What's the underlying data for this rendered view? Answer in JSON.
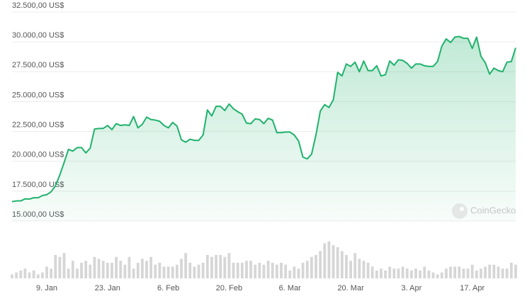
{
  "chart_data": {
    "type": "line",
    "watermark": "CoinGecko",
    "categories": [
      null,
      null,
      null,
      null,
      null,
      null,
      null,
      null,
      "9. Jan",
      null,
      null,
      null,
      null,
      null,
      null,
      null,
      null,
      null,
      null,
      null,
      null,
      null,
      "23. Jan",
      null,
      null,
      null,
      null,
      null,
      null,
      null,
      null,
      null,
      null,
      null,
      null,
      null,
      "6. Feb",
      null,
      null,
      null,
      null,
      null,
      null,
      null,
      null,
      null,
      null,
      null,
      null,
      null,
      "20. Feb",
      null,
      null,
      null,
      null,
      null,
      null,
      null,
      null,
      null,
      null,
      null,
      null,
      null,
      "6. Mar",
      null,
      null,
      null,
      null,
      null,
      null,
      null,
      null,
      null,
      null,
      null,
      null,
      null,
      "20. Mar",
      null,
      null,
      null,
      null,
      null,
      null,
      null,
      null,
      null,
      null,
      null,
      null,
      null,
      "3. Apr",
      null,
      null,
      null,
      null,
      null,
      null,
      null,
      null,
      null,
      null,
      null,
      null,
      null,
      "17. Apr",
      null,
      null,
      null,
      null,
      null,
      null,
      null,
      null,
      null,
      null
    ],
    "series": [
      {
        "type": "line",
        "color": "#20b26c",
        "values": [
          16620,
          16680,
          16680,
          16850,
          16830,
          16950,
          16940,
          17130,
          17200,
          17450,
          17950,
          18850,
          19900,
          21000,
          20850,
          21150,
          21150,
          20700,
          21100,
          22700,
          22750,
          22750,
          23000,
          22650,
          23150,
          23000,
          23050,
          23000,
          23750,
          22800,
          23100,
          23700,
          23500,
          23450,
          23350,
          23000,
          22800,
          23250,
          22950,
          21800,
          21600,
          21850,
          21750,
          21750,
          22200,
          24300,
          23800,
          24600,
          24600,
          24250,
          24800,
          24400,
          24150,
          23950,
          23200,
          23150,
          23550,
          23500,
          23150,
          23600,
          23450,
          22400,
          22400,
          22450,
          22450,
          22200,
          21700,
          20350,
          20200,
          20600,
          22200,
          24200,
          24750,
          24500,
          25150,
          27450,
          27150,
          28150,
          27950,
          28300,
          27500,
          28400,
          27600,
          27600,
          28000,
          27150,
          27250,
          28400,
          28050,
          28500,
          28450,
          28200,
          27800,
          28150,
          28150,
          28000,
          27950,
          27950,
          28350,
          29650,
          30250,
          29950,
          30400,
          30450,
          30300,
          30300,
          29450,
          30400,
          28800,
          28250,
          27300,
          27800,
          27600,
          27500,
          28300,
          28350,
          29500
        ]
      },
      {
        "type": "bar",
        "axis": "y2",
        "color": "#d6d6d6",
        "values": [
          10,
          15,
          20,
          25,
          15,
          20,
          10,
          15,
          30,
          25,
          60,
          55,
          65,
          25,
          45,
          25,
          40,
          45,
          35,
          55,
          50,
          45,
          40,
          40,
          55,
          45,
          35,
          55,
          25,
          40,
          50,
          45,
          55,
          35,
          40,
          30,
          30,
          30,
          35,
          50,
          65,
          40,
          30,
          35,
          40,
          60,
          55,
          60,
          60,
          55,
          65,
          40,
          40,
          40,
          45,
          45,
          35,
          40,
          35,
          45,
          40,
          35,
          40,
          35,
          20,
          30,
          25,
          40,
          45,
          55,
          60,
          70,
          90,
          95,
          85,
          80,
          70,
          60,
          45,
          65,
          50,
          45,
          40,
          30,
          20,
          25,
          20,
          30,
          25,
          25,
          30,
          25,
          20,
          25,
          20,
          30,
          20,
          15,
          10,
          15,
          25,
          30,
          30,
          30,
          25,
          25,
          35,
          20,
          25,
          30,
          35,
          35,
          30,
          25,
          25,
          40,
          35
        ]
      }
    ],
    "ylim": [
      15000,
      32500
    ],
    "yticks": [
      {
        "value": 15000,
        "label": "15.000,00 US$"
      },
      {
        "value": 17500,
        "label": "17.500,00 US$"
      },
      {
        "value": 20000,
        "label": "20.000,00 US$"
      },
      {
        "value": 22500,
        "label": "22.500,00 US$"
      },
      {
        "value": 25000,
        "label": "25.000,00 US$"
      },
      {
        "value": 27500,
        "label": "27.500,00 US$"
      },
      {
        "value": 30000,
        "label": "30.000,00 US$"
      },
      {
        "value": 32500,
        "label": "32.500,00 US$"
      }
    ],
    "y2lim": [
      0,
      100
    ],
    "grid": true
  }
}
